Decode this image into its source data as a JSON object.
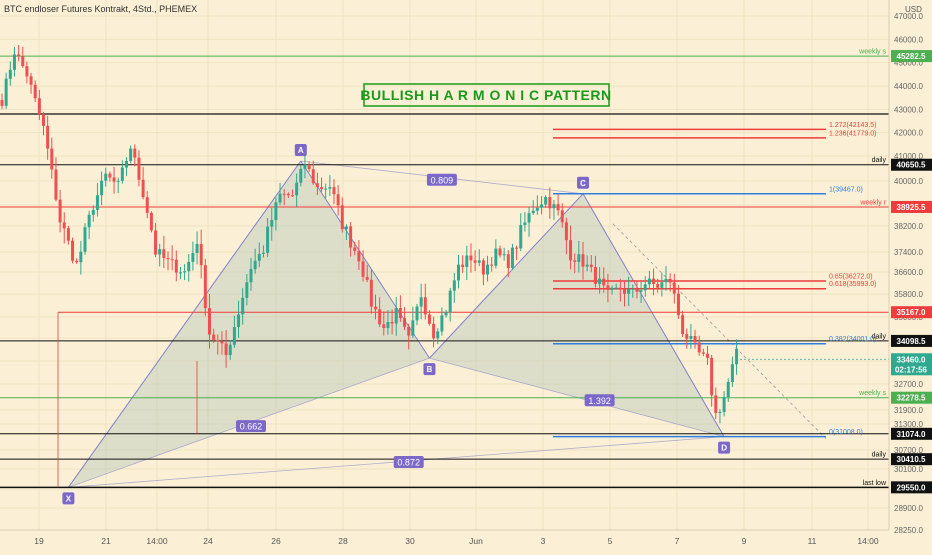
{
  "header": {
    "title": "BTC endloser Futures Kontrakt, 4Std., PHEMEX",
    "currency": "USD"
  },
  "banner": {
    "text": "BULLISH   H A R M O N I C   PATTERN"
  },
  "colors": {
    "background": "#fbf0d6",
    "up": "#2ea88f",
    "down": "#ee5050",
    "pattern_line": "#8080c8",
    "pattern_fill": "#b8c8bc",
    "green_level": "#4caf50",
    "red_level": "#ee3b3b",
    "blue_level": "#2f7fe0",
    "black_level": "#111111",
    "point_badge": "#7b68c8"
  },
  "chart_data": {
    "type": "candlestick",
    "title": "BTC endloser Futures Kontrakt, 4Std., PHEMEX",
    "ylim": [
      28000,
      47500
    ],
    "yticks": [
      47000,
      46000,
      45000,
      44000,
      43000,
      42000,
      41000,
      40000,
      39000,
      38200,
      37400,
      36600,
      35800,
      35000,
      34200,
      33400,
      32700,
      31900,
      31300,
      30700,
      30100,
      29500,
      28900,
      28250
    ],
    "ytick_labels": [
      "47000.0",
      "46000.0",
      "45000.0",
      "44000.0",
      "43000.0",
      "42000.0",
      "41000.0",
      "40000.0",
      "39000.0",
      "38200.0",
      "37400.0",
      "36600.0",
      "35800.0",
      "35000.0",
      "34200.0",
      "33400.0",
      "32700.0",
      "31900.0",
      "31300.0",
      "30700.0",
      "30100.0",
      "29500.0",
      "28900.0",
      "28250.0"
    ],
    "x_ticks": [
      "19",
      "21",
      "14:00",
      "24",
      "26",
      "28",
      "30",
      "Jun",
      "3",
      "5",
      "7",
      "9",
      "11",
      "14:00"
    ],
    "series_anchors": [
      [
        0,
        43400
      ],
      [
        3,
        45500
      ],
      [
        6,
        44500
      ],
      [
        10,
        42200
      ],
      [
        14,
        38400
      ],
      [
        18,
        36900
      ],
      [
        22,
        39000
      ],
      [
        25,
        40200
      ],
      [
        28,
        39800
      ],
      [
        31,
        41400
      ],
      [
        34,
        39500
      ],
      [
        37,
        37400
      ],
      [
        40,
        37000
      ],
      [
        44,
        36600
      ],
      [
        47,
        37800
      ],
      [
        50,
        34400
      ],
      [
        54,
        33600
      ],
      [
        57,
        35200
      ],
      [
        60,
        36800
      ],
      [
        63,
        37500
      ],
      [
        67,
        39400
      ],
      [
        70,
        39400
      ],
      [
        73,
        40700
      ],
      [
        76,
        39700
      ],
      [
        79,
        39800
      ],
      [
        82,
        38300
      ],
      [
        86,
        37200
      ],
      [
        89,
        35500
      ],
      [
        92,
        34600
      ],
      [
        95,
        35100
      ],
      [
        98,
        34100
      ],
      [
        101,
        35800
      ],
      [
        104,
        34400
      ],
      [
        107,
        35300
      ],
      [
        110,
        36800
      ],
      [
        113,
        37200
      ],
      [
        116,
        36700
      ],
      [
        119,
        37300
      ],
      [
        122,
        37000
      ],
      [
        125,
        38000
      ],
      [
        128,
        38900
      ],
      [
        131,
        39300
      ],
      [
        134,
        38700
      ],
      [
        137,
        37300
      ],
      [
        140,
        37000
      ],
      [
        143,
        36400
      ],
      [
        146,
        35700
      ],
      [
        149,
        36000
      ],
      [
        152,
        35800
      ],
      [
        155,
        36200
      ],
      [
        158,
        36100
      ],
      [
        161,
        36300
      ],
      [
        164,
        34500
      ],
      [
        167,
        33800
      ],
      [
        170,
        33300
      ],
      [
        172,
        31700
      ],
      [
        174,
        32300
      ],
      [
        177,
        33600
      ]
    ],
    "levels": [
      {
        "price": 45282.5,
        "color": "green",
        "badge": "45282.5",
        "note": "weekly s"
      },
      {
        "price": 42800,
        "color": "black",
        "badge": "",
        "note": ""
      },
      {
        "price": 42143.5,
        "color": "red",
        "badge": "",
        "note": "1.272(42143.5)"
      },
      {
        "price": 41779.0,
        "color": "red",
        "badge": "",
        "note": "1.236(41779.0)"
      },
      {
        "price": 40650.5,
        "color": "black",
        "badge": "40650.5",
        "note": "daily"
      },
      {
        "price": 39467.0,
        "color": "blue",
        "badge": "",
        "note": "1(39467.0)"
      },
      {
        "price": 38925.5,
        "color": "red",
        "badge": "38925.5",
        "note": "weekly r"
      },
      {
        "price": 36272.0,
        "color": "red",
        "badge": "",
        "note": "0.65(36272.0)"
      },
      {
        "price": 35993.0,
        "color": "red",
        "badge": "",
        "note": "0.618(35993.0)"
      },
      {
        "price": 35167.0,
        "color": "red",
        "badge": "35167.0",
        "note": ""
      },
      {
        "price": 34098.5,
        "color": "black",
        "badge": "34098.5",
        "note": "daily"
      },
      {
        "price": 34001.0,
        "color": "blue",
        "badge": "",
        "note": "0.382(34001.0)"
      },
      {
        "price": 32278.5,
        "color": "green",
        "badge": "32278.5",
        "note": "weekly s"
      },
      {
        "price": 31074.0,
        "color": "black",
        "badge": "31074.0",
        "note": ""
      },
      {
        "price": 31008.0,
        "color": "blue",
        "badge": "",
        "note": "0(31008.0)"
      },
      {
        "price": 30410.5,
        "color": "black",
        "badge": "30410.5",
        "note": "daily"
      },
      {
        "price": 29550.0,
        "color": "black",
        "badge": "29550.0",
        "note": "last low"
      }
    ],
    "current_price": {
      "price": 33460.0,
      "badge": "33460.0",
      "countdown": "02:17:56"
    },
    "pattern": {
      "points": [
        {
          "label": "X",
          "bar": 16,
          "price": 29550
        },
        {
          "label": "A",
          "bar": 72,
          "price": 40800
        },
        {
          "label": "B",
          "bar": 103,
          "price": 33500
        },
        {
          "label": "C",
          "bar": 140,
          "price": 39467
        },
        {
          "label": "D",
          "bar": 174,
          "price": 31008
        }
      ],
      "ratios": [
        {
          "text": "0.809",
          "bar": 106,
          "price": 40050
        },
        {
          "text": "0.662",
          "bar": 60,
          "price": 31250
        },
        {
          "text": "1.392",
          "bar": 144,
          "price": 32200
        },
        {
          "text": "0.872",
          "bar": 98,
          "price": 30320
        }
      ]
    }
  }
}
